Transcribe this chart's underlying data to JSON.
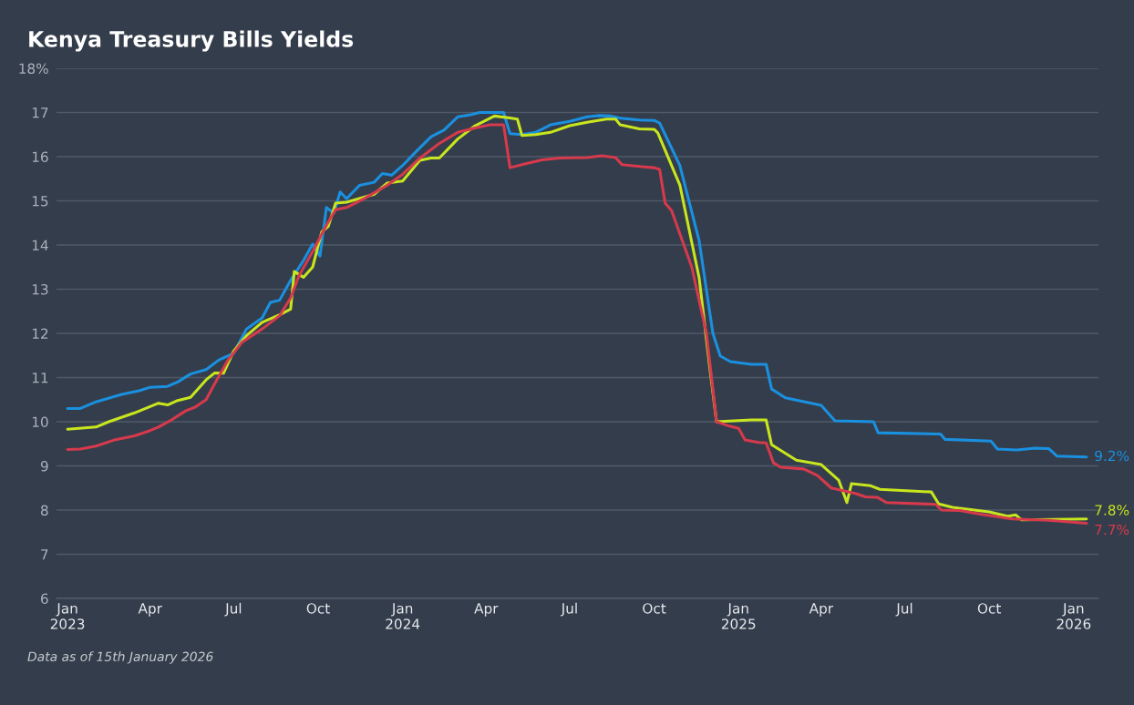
{
  "chart_data": {
    "type": "line",
    "title": "Kenya Treasury Bills Yields",
    "series": [
      {
        "color": "#1a90e0",
        "x": [
          "2023-01-01",
          "2023-01-15",
          "2023-02-01",
          "2023-03-01",
          "2023-03-20",
          "2023-04-01",
          "2023-04-20",
          "2023-05-01",
          "2023-05-15",
          "2023-06-01",
          "2023-06-15",
          "2023-07-01",
          "2023-07-15",
          "2023-08-01",
          "2023-08-10",
          "2023-08-20",
          "2023-09-01",
          "2023-09-15",
          "2023-09-25",
          "2023-10-03",
          "2023-10-10",
          "2023-10-18",
          "2023-10-25",
          "2023-11-01",
          "2023-11-15",
          "2023-12-01",
          "2023-12-10",
          "2023-12-20",
          "2024-01-01",
          "2024-01-15",
          "2024-02-01",
          "2024-02-15",
          "2024-03-01",
          "2024-03-15",
          "2024-03-25",
          "2024-04-20",
          "2024-04-27",
          "2024-05-10",
          "2024-05-25",
          "2024-06-10",
          "2024-07-01",
          "2024-07-20",
          "2024-08-01",
          "2024-08-15",
          "2024-08-25",
          "2024-09-15",
          "2024-10-01",
          "2024-10-07",
          "2024-10-29",
          "2024-11-19",
          "2024-12-04",
          "2024-12-12",
          "2024-12-23",
          "2025-01-15",
          "2025-01-31",
          "2025-02-06",
          "2025-02-21",
          "2025-04-01",
          "2025-04-16",
          "2025-05-28",
          "2025-06-02",
          "2025-08-09",
          "2025-08-14",
          "2025-10-03",
          "2025-10-10",
          "2025-10-31",
          "2025-11-20",
          "2025-12-05",
          "2025-12-14",
          "2026-01-15"
        ],
        "values": [
          10.3,
          10.3,
          10.45,
          10.62,
          10.7,
          10.78,
          10.8,
          10.9,
          11.08,
          11.18,
          11.4,
          11.55,
          12.1,
          12.35,
          12.7,
          12.75,
          13.2,
          13.65,
          14.02,
          13.75,
          14.85,
          14.72,
          15.2,
          15.05,
          15.35,
          15.42,
          15.62,
          15.58,
          15.8,
          16.1,
          16.45,
          16.6,
          16.9,
          16.95,
          17.0,
          17.0,
          16.52,
          16.5,
          16.55,
          16.72,
          16.8,
          16.9,
          16.93,
          16.92,
          16.87,
          16.83,
          16.82,
          16.76,
          15.8,
          14.1,
          12.0,
          11.49,
          11.36,
          11.3,
          11.3,
          10.74,
          10.54,
          10.37,
          10.02,
          10.0,
          9.75,
          9.72,
          9.6,
          9.56,
          9.38,
          9.36,
          9.4,
          9.39,
          9.22,
          9.2
        ]
      },
      {
        "color": "#c8e61e",
        "x": [
          "2023-01-01",
          "2023-02-01",
          "2023-02-15",
          "2023-03-15",
          "2023-04-10",
          "2023-04-20",
          "2023-05-01",
          "2023-05-15",
          "2023-06-01",
          "2023-06-10",
          "2023-06-20",
          "2023-07-01",
          "2023-07-15",
          "2023-08-01",
          "2023-08-20",
          "2023-09-01",
          "2023-09-05",
          "2023-09-15",
          "2023-09-25",
          "2023-10-05",
          "2023-10-12",
          "2023-10-20",
          "2023-11-01",
          "2023-12-01",
          "2023-12-15",
          "2024-01-01",
          "2024-01-20",
          "2024-02-01",
          "2024-02-10",
          "2024-03-01",
          "2024-03-20",
          "2024-04-10",
          "2024-04-25",
          "2024-05-05",
          "2024-05-10",
          "2024-05-25",
          "2024-06-10",
          "2024-07-01",
          "2024-07-20",
          "2024-08-10",
          "2024-08-20",
          "2024-08-25",
          "2024-09-15",
          "2024-10-01",
          "2024-10-05",
          "2024-10-29",
          "2024-11-19",
          "2024-12-01",
          "2024-12-08",
          "2025-01-15",
          "2025-01-31",
          "2025-02-06",
          "2025-03-05",
          "2025-04-01",
          "2025-04-20",
          "2025-04-29",
          "2025-05-04",
          "2025-05-25",
          "2025-06-04",
          "2025-07-30",
          "2025-08-07",
          "2025-08-22",
          "2025-10-01",
          "2025-10-21",
          "2025-10-30",
          "2025-11-05",
          "2026-01-15"
        ],
        "values": [
          9.83,
          9.88,
          10.0,
          10.2,
          10.42,
          10.38,
          10.48,
          10.55,
          10.95,
          11.1,
          11.1,
          11.6,
          11.95,
          12.25,
          12.42,
          12.55,
          13.4,
          13.27,
          13.5,
          14.3,
          14.42,
          14.95,
          14.97,
          15.15,
          15.4,
          15.45,
          15.92,
          15.97,
          15.97,
          16.4,
          16.7,
          16.92,
          16.88,
          16.85,
          16.48,
          16.5,
          16.55,
          16.7,
          16.78,
          16.85,
          16.85,
          16.72,
          16.63,
          16.62,
          16.54,
          15.36,
          13.26,
          11.16,
          10.0,
          10.04,
          10.04,
          9.48,
          9.13,
          9.03,
          8.68,
          8.17,
          8.6,
          8.55,
          8.47,
          8.41,
          8.14,
          8.06,
          7.96,
          7.86,
          7.89,
          7.78,
          7.8
        ]
      },
      {
        "color": "#d63a4c",
        "x": [
          "2023-01-01",
          "2023-01-15",
          "2023-02-01",
          "2023-02-20",
          "2023-03-15",
          "2023-04-01",
          "2023-04-10",
          "2023-04-25",
          "2023-05-10",
          "2023-05-20",
          "2023-06-01",
          "2023-06-10",
          "2023-06-25",
          "2023-07-10",
          "2023-08-01",
          "2023-08-20",
          "2023-09-01",
          "2023-09-10",
          "2023-09-25",
          "2023-10-10",
          "2023-10-20",
          "2023-11-01",
          "2023-11-20",
          "2023-12-15",
          "2024-01-01",
          "2024-01-20",
          "2024-02-10",
          "2024-03-01",
          "2024-03-20",
          "2024-04-05",
          "2024-04-20",
          "2024-04-27",
          "2024-05-10",
          "2024-06-01",
          "2024-06-20",
          "2024-07-20",
          "2024-08-05",
          "2024-08-20",
          "2024-08-27",
          "2024-09-20",
          "2024-10-01",
          "2024-10-07",
          "2024-10-13",
          "2024-10-20",
          "2024-11-11",
          "2024-11-27",
          "2024-12-08",
          "2024-12-22",
          "2025-01-01",
          "2025-01-08",
          "2025-01-23",
          "2025-01-31",
          "2025-02-08",
          "2025-02-16",
          "2025-03-13",
          "2025-03-28",
          "2025-04-12",
          "2025-05-09",
          "2025-05-19",
          "2025-06-01",
          "2025-06-11",
          "2025-08-04",
          "2025-08-10",
          "2025-08-30",
          "2025-09-23",
          "2025-10-26",
          "2025-12-05",
          "2026-01-15"
        ],
        "values": [
          9.37,
          9.38,
          9.45,
          9.58,
          9.68,
          9.8,
          9.88,
          10.05,
          10.25,
          10.33,
          10.5,
          10.85,
          11.4,
          11.8,
          12.1,
          12.4,
          12.8,
          13.3,
          13.85,
          14.45,
          14.8,
          14.85,
          15.05,
          15.35,
          15.6,
          15.97,
          16.3,
          16.55,
          16.65,
          16.72,
          16.72,
          15.75,
          15.82,
          15.93,
          15.97,
          15.98,
          16.02,
          15.98,
          15.82,
          15.77,
          15.75,
          15.71,
          14.95,
          14.78,
          13.5,
          12.0,
          10.0,
          9.9,
          9.85,
          9.59,
          9.53,
          9.52,
          9.07,
          8.97,
          8.93,
          8.78,
          8.5,
          8.37,
          8.3,
          8.29,
          8.17,
          8.13,
          8.0,
          7.99,
          7.9,
          7.8,
          7.77,
          7.7
        ]
      }
    ],
    "xlim": [
      "2022-12-20",
      "2026-01-28"
    ],
    "xticks": [
      {
        "value": "2023-01-01",
        "label": "Jan\n2023"
      },
      {
        "value": "2023-04-01",
        "label": "Apr"
      },
      {
        "value": "2023-07-01",
        "label": "Jul"
      },
      {
        "value": "2023-10-01",
        "label": "Oct"
      },
      {
        "value": "2024-01-01",
        "label": "Jan\n2024"
      },
      {
        "value": "2024-04-01",
        "label": "Apr"
      },
      {
        "value": "2024-07-01",
        "label": "Jul"
      },
      {
        "value": "2024-10-01",
        "label": "Oct"
      },
      {
        "value": "2025-01-01",
        "label": "Jan\n2025"
      },
      {
        "value": "2025-04-01",
        "label": "Apr"
      },
      {
        "value": "2025-07-01",
        "label": "Jul"
      },
      {
        "value": "2025-10-01",
        "label": "Oct"
      },
      {
        "value": "2026-01-01",
        "label": "Jan\n2026"
      }
    ],
    "ylim": [
      6,
      18
    ],
    "yticks": [
      6,
      7,
      8,
      9,
      10,
      11,
      12,
      13,
      14,
      15,
      16,
      17,
      {
        "value": 18,
        "label": "18%"
      }
    ],
    "grid": "y",
    "marker": "none",
    "line_style": "solid",
    "annotations": [
      {
        "text": "9.2%",
        "x": "2026-01-15",
        "y": 9.2
      },
      {
        "text": "7.8%",
        "x": "2026-01-15",
        "y": 7.8
      },
      {
        "text": "7.7%",
        "x": "2026-01-15",
        "y": 7.7
      },
      "Data as of 15th January 2026"
    ]
  }
}
